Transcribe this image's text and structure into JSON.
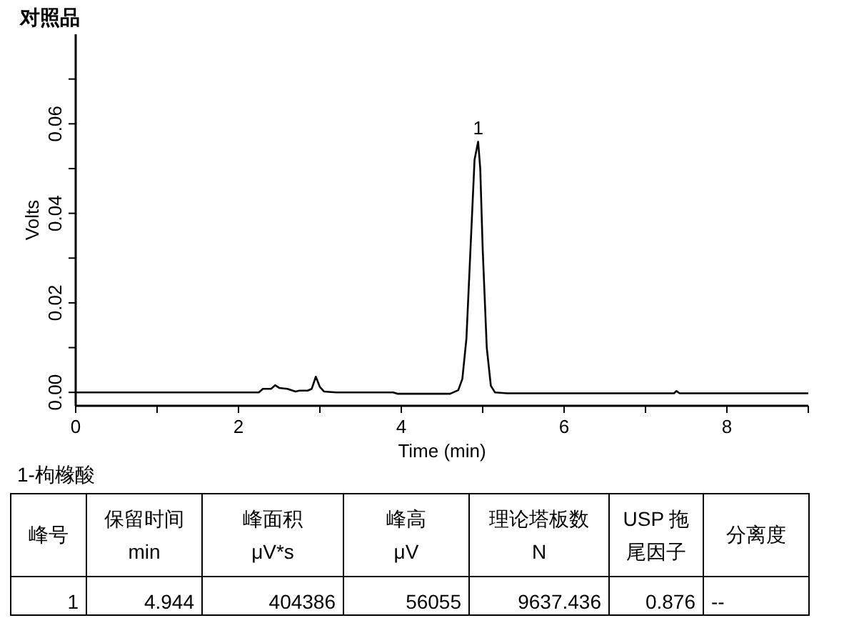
{
  "chart_data": {
    "type": "line",
    "title": "对照品",
    "xlabel": "Time (min)",
    "ylabel": "Volts",
    "color": "#000000",
    "x": [
      0,
      2.25,
      2.3,
      2.35,
      2.4,
      2.45,
      2.5,
      2.6,
      2.7,
      2.75,
      2.85,
      2.9,
      2.95,
      3.0,
      3.05,
      3.2,
      3.9,
      3.95,
      4.6,
      4.7,
      4.75,
      4.8,
      4.85,
      4.9,
      4.944,
      4.97,
      5.0,
      5.05,
      5.1,
      5.15,
      5.3,
      7.35,
      7.38,
      7.42,
      9
    ],
    "values": [
      0,
      0,
      0.0008,
      0.0008,
      0.0008,
      0.0016,
      0.001,
      0.0008,
      0.0002,
      0.0004,
      0.0004,
      0.0008,
      0.0035,
      0.0012,
      0.0002,
      0,
      0,
      -0.0003,
      -0.0003,
      0.0005,
      0.003,
      0.012,
      0.032,
      0.052,
      0.056,
      0.05,
      0.032,
      0.01,
      0.0015,
      0,
      -0.0002,
      -0.0002,
      0.0003,
      -0.0002,
      -0.0002
    ],
    "xlim": [
      0,
      9
    ],
    "ylim": [
      -0.003,
      0.08
    ],
    "xticks": [
      0,
      {
        "value": 1,
        "label": null
      },
      2,
      {
        "value": 3,
        "label": null
      },
      4,
      {
        "value": 5,
        "label": null
      },
      6,
      {
        "value": 7,
        "label": null
      },
      8,
      {
        "value": 9,
        "label": null
      }
    ],
    "yticks": [
      {
        "value": 0,
        "label": "0.00"
      },
      {
        "value": 0.01,
        "label": null
      },
      {
        "value": 0.02,
        "label": "0.02"
      },
      {
        "value": 0.03,
        "label": null
      },
      {
        "value": 0.04,
        "label": "0.04"
      },
      {
        "value": 0.05,
        "label": null
      },
      {
        "value": 0.06,
        "label": "0.06"
      },
      {
        "value": 0.07,
        "label": null
      }
    ],
    "annotations": [
      {
        "text": "1",
        "x": 4.944,
        "y": 0.056
      },
      "1-枸橼酸",
      "峰号",
      "保留时间\nmin",
      "峰面积\nμV*s",
      "峰高\nμV",
      "理论塔板数\nN",
      "USP 拖尾因子",
      "分离度",
      "1",
      "4.944",
      "404386",
      "56055",
      "9637.436",
      "0.876",
      "--"
    ]
  }
}
